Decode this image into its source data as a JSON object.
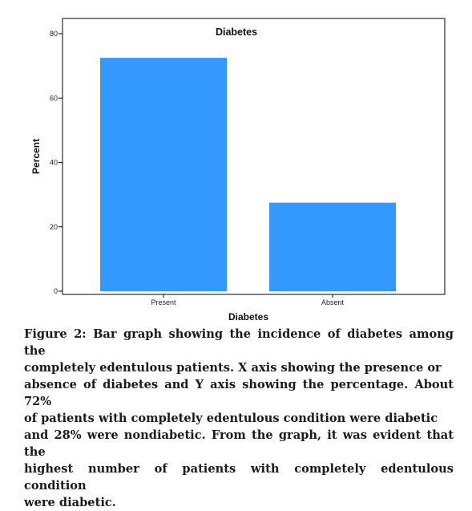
{
  "chart_data": {
    "type": "bar",
    "title": "Diabetes",
    "xlabel": "Diabetes",
    "ylabel": "Percent",
    "categories": [
      "Present",
      "Absent"
    ],
    "values": [
      72.5,
      27.5
    ],
    "ylim": [
      0,
      80
    ],
    "yticks": [
      0,
      20,
      40,
      60,
      80
    ],
    "ytick_labels": [
      "0",
      "20",
      "40",
      "60",
      "80"
    ],
    "bar_color": "#3399ff",
    "grid": false
  },
  "caption": "Figure 2: Bar graph showing the incidence of diabetes among the\ncompletely edentulous patients. X axis showing the presence or\nabsence of diabetes and Y axis showing the percentage. About 72%\nof patients with completely edentulous condition were diabetic\nand 28% were nondiabetic. From the graph, it was evident that the\nhighest number of patients with completely edentulous condition\nwere diabetic."
}
